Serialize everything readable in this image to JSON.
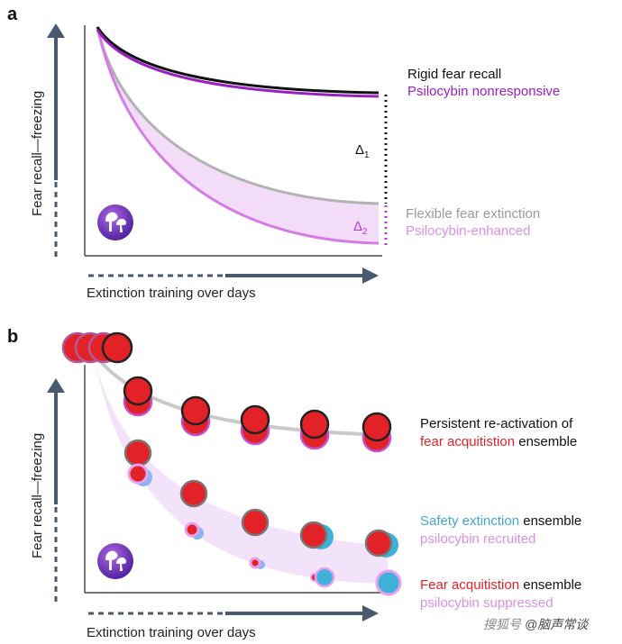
{
  "panel_a": {
    "letter": "a",
    "ylabel": "Fear recall—freezing",
    "xlabel": "Extinction training over days",
    "legend": {
      "rigid": "Rigid fear recall",
      "nonresponsive": "Psilocybin nonresponsive",
      "flexible": "Flexible fear extinction",
      "enhanced": "Psilocybin-enhanced"
    },
    "delta1": {
      "symbol": "Δ",
      "sub": "1"
    },
    "delta2": {
      "symbol": "Δ",
      "sub": "2"
    },
    "icon": "mushroom-icon"
  },
  "panel_b": {
    "letter": "b",
    "ylabel": "Fear recall—freezing",
    "xlabel": "Extinction training over days",
    "legend": {
      "persistent_line1": "Persistent re-activation of",
      "persistent_line2_red": "fear acquitistion",
      "persistent_line2_rest": " ensemble",
      "safety_blue": "Safety extinction",
      "safety_rest": " ensemble",
      "recruited": "psilocybin recruited",
      "fear_red": "Fear acquitistion",
      "fear_rest": " ensemble",
      "suppressed": "psilocybin suppressed"
    },
    "icon": "mushroom-icon"
  },
  "watermark": "@脑声常谈",
  "watermark_prefix": "搜狐号",
  "colors": {
    "black_curve": "#111111",
    "purple": "#9a1fc0",
    "gray": "#b3b3b3",
    "light_purple": "#d47be6",
    "shade": "#f0d9f7",
    "red": "#e32228",
    "blue": "#3fb0d8",
    "pink_text": "#d98ee8",
    "axis_arrow": "#4a5a6e"
  }
}
